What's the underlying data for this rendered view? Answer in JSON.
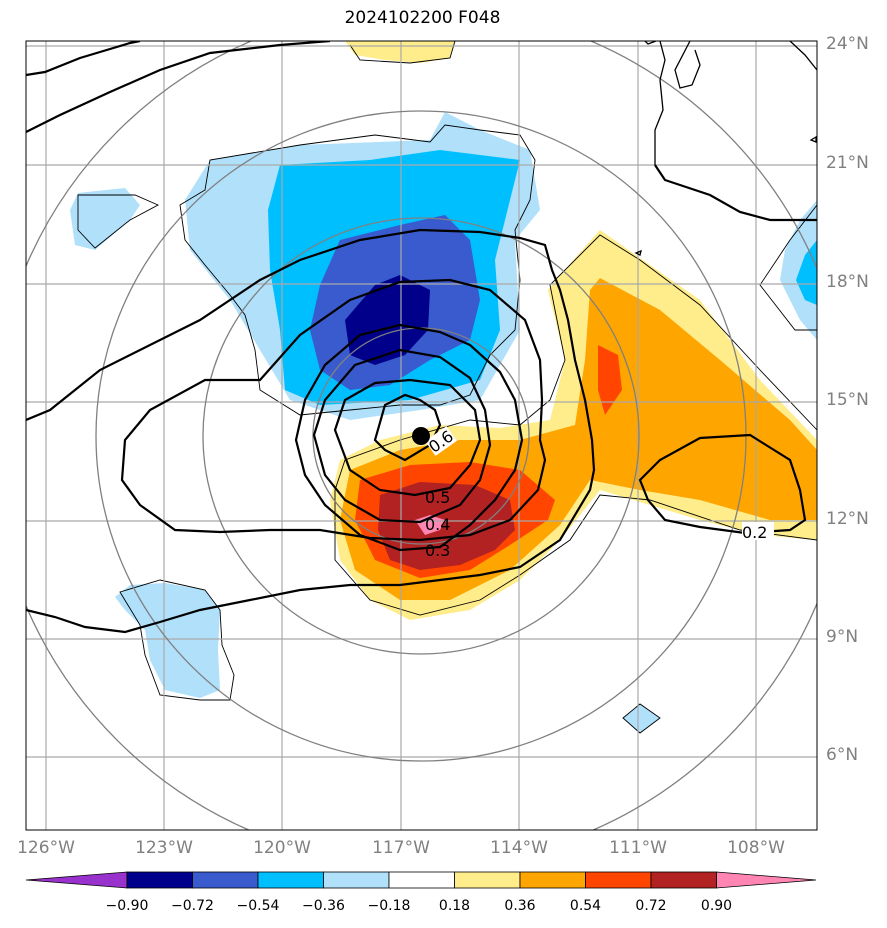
{
  "title": "2024102200 F048",
  "lat_labels": [
    "24°N",
    "21°N",
    "18°N",
    "15°N",
    "12°N",
    "9°N",
    "6°N"
  ],
  "lon_labels": [
    "126°W",
    "123°W",
    "120°W",
    "117°W",
    "114°W",
    "111°W",
    "108°W"
  ],
  "contour_labels": [
    "0.6",
    "0.5",
    "0.4",
    "0.3",
    "0.2"
  ],
  "colorbar": {
    "ticks": [
      "−0.90",
      "−0.72",
      "−0.54",
      "−0.36",
      "−0.18",
      "0.18",
      "0.36",
      "0.54",
      "0.72",
      "0.90"
    ],
    "colors": [
      "#9932cc",
      "#00008b",
      "#3a5bcd",
      "#00bfff",
      "#b0e0fa",
      "#ffffff",
      "#ffec8b",
      "#ffa500",
      "#ff4500",
      "#b22222",
      "#ff85b3"
    ]
  },
  "colors": {
    "grid": "#a9a9a9",
    "labels": "#808080",
    "range_rings": "#808080",
    "contours": "#000000",
    "center_marker": "#000000"
  }
}
